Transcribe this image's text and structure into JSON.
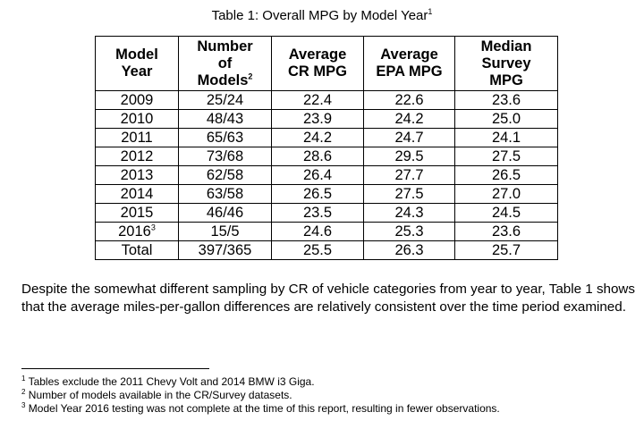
{
  "table": {
    "caption_text": "Table 1: Overall MPG by Model Year",
    "caption_sup": "1",
    "headers": {
      "model_year": [
        "Model",
        "Year"
      ],
      "num_models": [
        "Number",
        "of",
        "Models"
      ],
      "num_models_sup": "2",
      "avg_cr": [
        "Average",
        "CR MPG"
      ],
      "avg_epa": [
        "Average",
        "EPA MPG"
      ],
      "median_survey": [
        "Median",
        "Survey",
        "MPG"
      ]
    },
    "rows": [
      {
        "year": "2009",
        "year_sup": "",
        "models": "25/24",
        "cr": "22.4",
        "epa": "22.6",
        "survey": "23.6"
      },
      {
        "year": "2010",
        "year_sup": "",
        "models": "48/43",
        "cr": "23.9",
        "epa": "24.2",
        "survey": "25.0"
      },
      {
        "year": "2011",
        "year_sup": "",
        "models": "65/63",
        "cr": "24.2",
        "epa": "24.7",
        "survey": "24.1"
      },
      {
        "year": "2012",
        "year_sup": "",
        "models": "73/68",
        "cr": "28.6",
        "epa": "29.5",
        "survey": "27.5"
      },
      {
        "year": "2013",
        "year_sup": "",
        "models": "62/58",
        "cr": "26.4",
        "epa": "27.7",
        "survey": "26.5"
      },
      {
        "year": "2014",
        "year_sup": "",
        "models": "63/58",
        "cr": "26.5",
        "epa": "27.5",
        "survey": "27.0"
      },
      {
        "year": "2015",
        "year_sup": "",
        "models": "46/46",
        "cr": "23.5",
        "epa": "24.3",
        "survey": "24.5"
      },
      {
        "year": "2016",
        "year_sup": "3",
        "models": "15/5",
        "cr": "24.6",
        "epa": "25.3",
        "survey": "23.6"
      },
      {
        "year": "Total",
        "year_sup": "",
        "models": "397/365",
        "cr": "25.5",
        "epa": "26.3",
        "survey": "25.7"
      }
    ]
  },
  "paragraph": "Despite the somewhat different sampling by CR of vehicle categories from year to year, Table 1 shows that the average miles-per-gallon differences are relatively consistent over the time period examined.",
  "footnotes": [
    {
      "marker": "1",
      "text": "Tables exclude the 2011 Chevy Volt and 2014 BMW i3 Giga."
    },
    {
      "marker": "2",
      "text": "Number of models available in the CR/Survey datasets."
    },
    {
      "marker": "3",
      "text": "Model Year 2016 testing was not complete at the time of this report, resulting in fewer observations."
    }
  ]
}
